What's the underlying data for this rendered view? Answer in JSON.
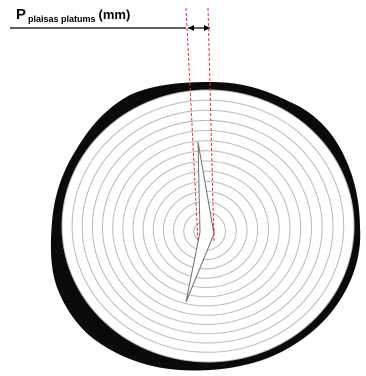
{
  "label": {
    "letter": "P",
    "subscript": "plaisas platums",
    "unit": "(mm)"
  },
  "colors": {
    "bark": "#0a0a0a",
    "wood": "#ffffff",
    "rings": "#b9b9b9",
    "crack": "#6e6e6e",
    "guide": "#e03030",
    "arrow": "#000000"
  },
  "ring_count": 13
}
